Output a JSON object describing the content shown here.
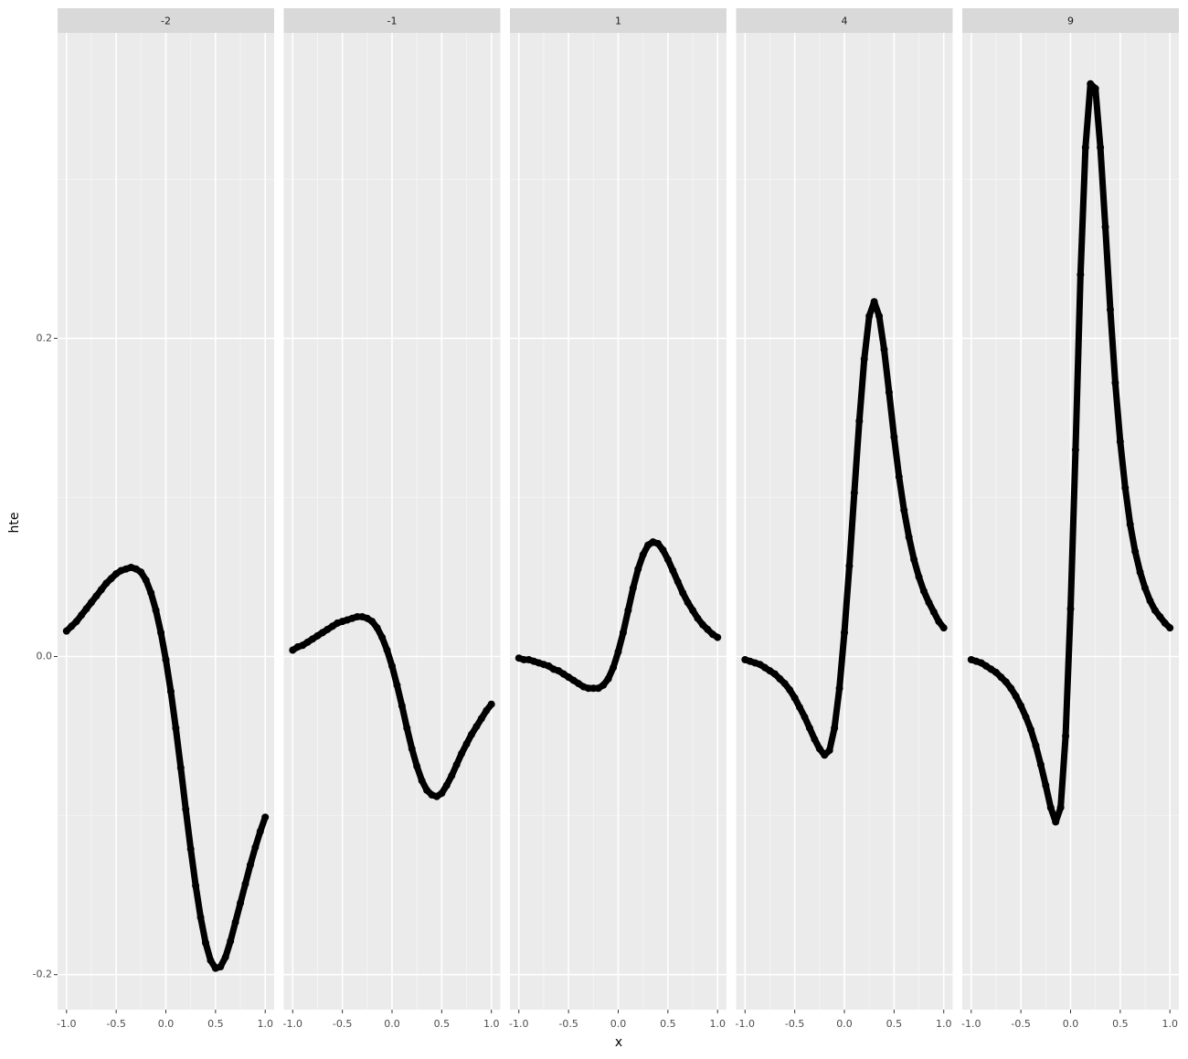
{
  "chart_data": {
    "type": "scatter",
    "x_label": "x",
    "y_label": "hte",
    "xlim": [
      -1.09,
      1.09
    ],
    "ylim": [
      -0.222,
      0.392
    ],
    "xticks": [
      {
        "value": -1,
        "label": "-1.0"
      },
      {
        "value": -0.5,
        "label": "-0.5"
      },
      {
        "value": 0,
        "label": "0.0"
      },
      {
        "value": 0.5,
        "label": "0.5"
      },
      {
        "value": 1,
        "label": "1.0"
      }
    ],
    "yticks": [
      {
        "value": -0.2,
        "label": "-0.2"
      },
      {
        "value": 0,
        "label": "0.0"
      },
      {
        "value": 0.2,
        "label": "0.2"
      }
    ],
    "grid": true,
    "color": "#000000",
    "x": [
      -1,
      -0.95,
      -0.9,
      -0.85,
      -0.8,
      -0.75,
      -0.7,
      -0.65,
      -0.6,
      -0.55,
      -0.5,
      -0.45,
      -0.4,
      -0.35,
      -0.3,
      -0.25,
      -0.2,
      -0.15,
      -0.1,
      -0.05,
      0,
      0.05,
      0.1,
      0.15,
      0.2,
      0.25,
      0.3,
      0.35,
      0.4,
      0.45,
      0.5,
      0.55,
      0.6,
      0.65,
      0.7,
      0.75,
      0.8,
      0.85,
      0.9,
      0.95,
      1
    ],
    "panels": [
      {
        "label": "-2",
        "values": [
          0.016,
          0.019,
          0.022,
          0.026,
          0.03,
          0.034,
          0.038,
          0.042,
          0.046,
          0.049,
          0.052,
          0.054,
          0.055,
          0.056,
          0.055,
          0.053,
          0.048,
          0.04,
          0.029,
          0.015,
          -0.002,
          -0.022,
          -0.045,
          -0.07,
          -0.096,
          -0.121,
          -0.144,
          -0.164,
          -0.18,
          -0.191,
          -0.196,
          -0.195,
          -0.189,
          -0.179,
          -0.167,
          -0.155,
          -0.143,
          -0.131,
          -0.12,
          -0.11,
          -0.101
        ]
      },
      {
        "label": "-1",
        "values": [
          0.004,
          0.006,
          0.007,
          0.009,
          0.011,
          0.013,
          0.015,
          0.017,
          0.019,
          0.021,
          0.022,
          0.023,
          0.024,
          0.025,
          0.025,
          0.024,
          0.022,
          0.018,
          0.012,
          0.004,
          -0.006,
          -0.018,
          -0.031,
          -0.045,
          -0.058,
          -0.069,
          -0.078,
          -0.084,
          -0.087,
          -0.088,
          -0.086,
          -0.081,
          -0.075,
          -0.068,
          -0.061,
          -0.055,
          -0.049,
          -0.044,
          -0.039,
          -0.034,
          -0.03
        ]
      },
      {
        "label": "1",
        "values": [
          -0.001,
          -0.002,
          -0.002,
          -0.003,
          -0.004,
          -0.005,
          -0.006,
          -0.008,
          -0.009,
          -0.011,
          -0.013,
          -0.015,
          -0.017,
          -0.019,
          -0.02,
          -0.02,
          -0.02,
          -0.018,
          -0.014,
          -0.007,
          0.003,
          0.015,
          0.029,
          0.043,
          0.055,
          0.064,
          0.07,
          0.072,
          0.071,
          0.067,
          0.061,
          0.054,
          0.047,
          0.04,
          0.034,
          0.029,
          0.024,
          0.02,
          0.017,
          0.014,
          0.012
        ]
      },
      {
        "label": "4",
        "values": [
          -0.002,
          -0.003,
          -0.004,
          -0.005,
          -0.007,
          -0.009,
          -0.011,
          -0.014,
          -0.017,
          -0.021,
          -0.026,
          -0.032,
          -0.038,
          -0.045,
          -0.052,
          -0.058,
          -0.062,
          -0.059,
          -0.045,
          -0.02,
          0.015,
          0.057,
          0.103,
          0.148,
          0.187,
          0.214,
          0.223,
          0.214,
          0.193,
          0.166,
          0.138,
          0.113,
          0.092,
          0.075,
          0.061,
          0.05,
          0.041,
          0.034,
          0.028,
          0.022,
          0.018
        ]
      },
      {
        "label": "9",
        "values": [
          -0.002,
          -0.003,
          -0.004,
          -0.006,
          -0.008,
          -0.01,
          -0.013,
          -0.016,
          -0.02,
          -0.025,
          -0.031,
          -0.038,
          -0.046,
          -0.056,
          -0.068,
          -0.081,
          -0.095,
          -0.104,
          -0.095,
          -0.05,
          0.03,
          0.13,
          0.24,
          0.32,
          0.36,
          0.357,
          0.32,
          0.27,
          0.218,
          0.172,
          0.135,
          0.106,
          0.083,
          0.066,
          0.053,
          0.043,
          0.035,
          0.029,
          0.025,
          0.021,
          0.018
        ]
      }
    ]
  }
}
